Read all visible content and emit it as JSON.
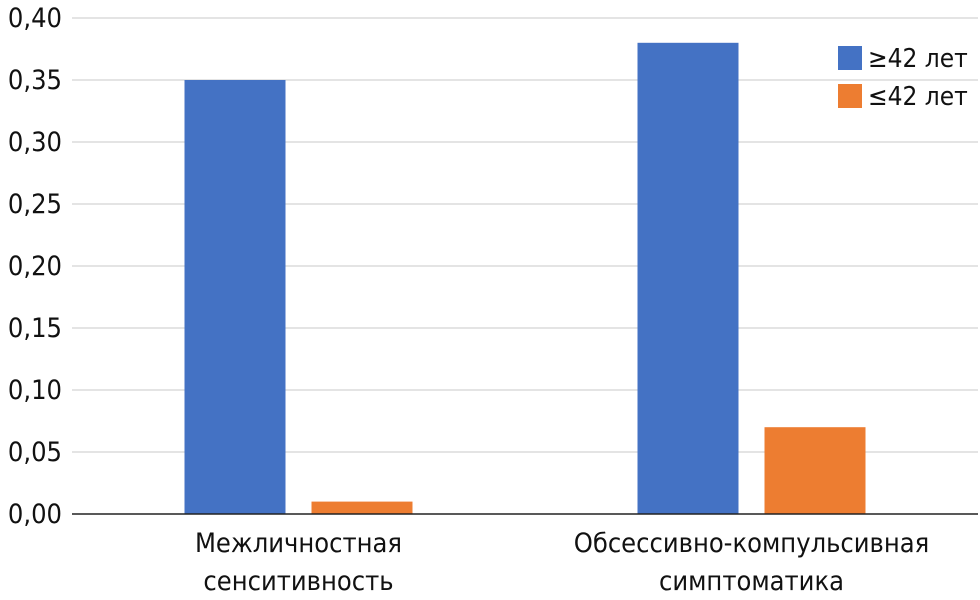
{
  "chart_data": {
    "type": "bar",
    "title": "",
    "xlabel": "",
    "ylabel": "",
    "categories": [
      [
        "Межличностная",
        "сенситивность"
      ],
      [
        "Обсессивно-компульсивная",
        "симптоматика"
      ]
    ],
    "series": [
      {
        "name": "≥42 лет",
        "color": "#4472C4",
        "values": [
          0.35,
          0.38
        ]
      },
      {
        "name": "≤42 лет",
        "color": "#ED7D31",
        "values": [
          0.01,
          0.07
        ]
      }
    ],
    "ylim": [
      0,
      0.4
    ],
    "yticks": [
      0.0,
      0.05,
      0.1,
      0.15,
      0.2,
      0.25,
      0.3,
      0.35,
      0.4
    ],
    "ytick_labels": [
      "0,00",
      "0,05",
      "0,10",
      "0,15",
      "0,20",
      "0,25",
      "0,30",
      "0,35",
      "0,40"
    ],
    "grid": "horizontal",
    "legend_position": "top-right"
  }
}
